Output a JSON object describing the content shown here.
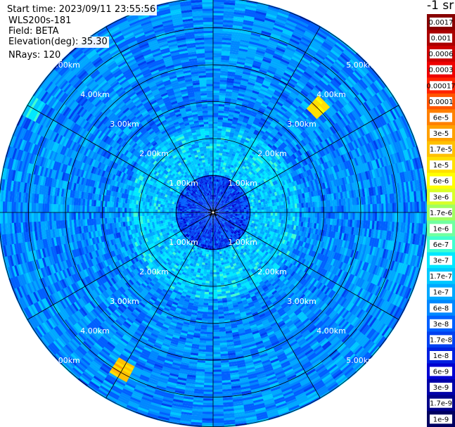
{
  "info": {
    "start_time": "Start time: 2023/09/11 23:55:56",
    "instrument": "WLS200s-181",
    "field": "Field: BETA",
    "elevation": "Elevation(deg): 35.30",
    "nrays": "NRays: 120"
  },
  "colorbar": {
    "unit": "-1 sr",
    "labels": [
      "0.0017",
      "0.001",
      "0.0006",
      "0.0003",
      "0.00017",
      "0.0001",
      "6e-5",
      "3e-5",
      "1.7e-5",
      "1e-5",
      "6e-6",
      "3e-6",
      "1.7e-6",
      "1e-6",
      "6e-7",
      "3e-7",
      "1.7e-7",
      "1e-7",
      "6e-8",
      "3e-8",
      "1.7e-8",
      "1e-8",
      "6e-9",
      "3e-9",
      "1.7e-9",
      "1e-9"
    ],
    "colors": [
      "#880000",
      "#aa0000",
      "#cc0000",
      "#ee0000",
      "#ff2200",
      "#ff5500",
      "#ff8000",
      "#ffa000",
      "#ffc000",
      "#ffe000",
      "#ffff00",
      "#d8ff28",
      "#a0ff60",
      "#70ffa0",
      "#40ffd0",
      "#00e8ff",
      "#00c8ff",
      "#00a8ff",
      "#0088ff",
      "#0060ff",
      "#0040f0",
      "#0020e0",
      "#0000d0",
      "#0000a8",
      "#000088",
      "#000060"
    ]
  },
  "chart_data": {
    "type": "heatmap",
    "projection": "polar (PPI scan)",
    "field": "BETA",
    "elevation_deg": 35.3,
    "nrays": 120,
    "range_rings_km": [
      1,
      2,
      3,
      4,
      5
    ],
    "range_labels": [
      "1.00km",
      "2.00km",
      "3.00km",
      "4.00km",
      "5.00km"
    ],
    "max_range_km": 5.8,
    "azimuth_spokes_deg": [
      0,
      30,
      60,
      90,
      120,
      150,
      180,
      210,
      240,
      270,
      300,
      330
    ],
    "colorscale": "log",
    "color_range": [
      1e-09,
      0.0017
    ],
    "typical_values": [
      {
        "range_km": [
          0,
          1.0
        ],
        "value": 1.7e-08
      },
      {
        "range_km": [
          1.0,
          2.3
        ],
        "value": 1.7e-07
      },
      {
        "range_km": [
          2.3,
          5.8
        ],
        "value": 6e-08
      }
    ],
    "features": [
      {
        "azimuth_deg": 45,
        "range_km": 4.0,
        "value": 1e-05
      },
      {
        "azimuth_deg": 210,
        "range_km": 4.9,
        "value": 1.7e-05
      },
      {
        "azimuth_deg": 300,
        "range_km": 5.6,
        "value": 3e-07
      }
    ]
  }
}
